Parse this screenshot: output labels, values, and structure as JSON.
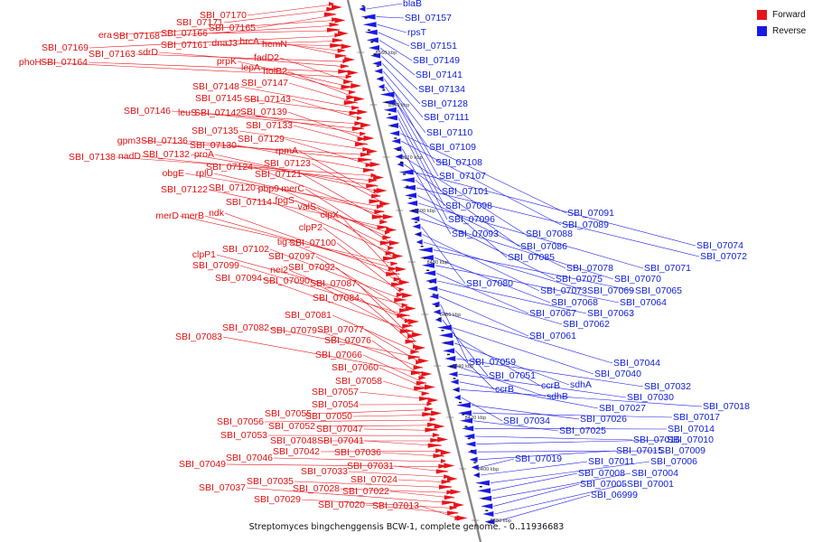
{
  "caption": "Streptomyces bingchenggensis BCW-1, complete genome. - 0..11936683",
  "legend": [
    {
      "label": "Forward",
      "color": "#e8141a"
    },
    {
      "label": "Reverse",
      "color": "#1a1ae8"
    }
  ],
  "colors": {
    "forward": "#e8141a",
    "reverse": "#1a1ae8",
    "axis": "#888888"
  },
  "ticks": [
    "8560 kbp",
    "8540 kbp",
    "8520 kbp",
    "8500 kbp",
    "8480 kbp",
    "8460 kbp",
    "8440 kbp",
    "8420 kbp",
    "8400 kbp",
    "8380 kbp"
  ],
  "forward_genes": [
    "SBI_07170",
    "SBI_07171",
    "SBI_07165",
    "era",
    "SBI_07168",
    "SBI_07166",
    "SBI_07169",
    "SBI_07161",
    "dnaJ3",
    "hrcA",
    "hemN",
    "SBI_07163",
    "sdrD",
    "SBI_07164",
    "phoH",
    "fadD2",
    "prpK",
    "lepA",
    "holB2",
    "SBI_07147",
    "SBI_07148",
    "SBI_07145",
    "SBI_07143",
    "SBI_07146",
    "leuS",
    "SBI_07142",
    "SBI_07139",
    "SBI_07133",
    "SBI_07135",
    "gpm3",
    "SBI_07136",
    "SBI_07129",
    "SBI_07130",
    "SBI_07138",
    "nadD",
    "SBI_07132",
    "proA",
    "rpmA",
    "SBI_07123",
    "obgE",
    "rplU",
    "SBI_07124",
    "SBI_07121",
    "SBI_07122",
    "SBI_07120",
    "pbp9",
    "merC",
    "fpgS",
    "SBI_07114",
    "valS",
    "merD",
    "merB",
    "ndk",
    "clpX",
    "clpP2",
    "tig",
    "SBI_07100",
    "SBI_07102",
    "clpP1",
    "SBI_07097",
    "SBI_07099",
    "nei2",
    "SBI_07092",
    "SBI_07094",
    "SBI_07090",
    "SBI_07087",
    "SBI_07084",
    "SBI_07081",
    "SBI_07082",
    "SBI_07077",
    "SBI_07079",
    "SBI_07083",
    "SBI_07076",
    "SBI_07066",
    "SBI_07060",
    "SBI_07058",
    "SBI_07057",
    "SBI_07054",
    "SBI_07055",
    "SBI_07050",
    "SBI_07056",
    "SBI_07052",
    "SBI_07047",
    "SBI_07053",
    "SBI_07048",
    "SBI_07041",
    "SBI_07042",
    "SBI_07036",
    "SBI_07046",
    "SBI_07049",
    "SBI_07031",
    "SBI_07033",
    "SBI_07024",
    "SBI_07035",
    "SBI_07028",
    "SBI_07022",
    "SBI_07037",
    "SBI_07029",
    "SBI_07020",
    "SBI_07013"
  ],
  "reverse_genes": [
    "blaB",
    "SBI_07157",
    "rpsT",
    "SBI_07151",
    "SBI_07149",
    "SBI_07141",
    "SBI_07134",
    "SBI_07128",
    "SBI_07111",
    "SBI_07110",
    "SBI_07109",
    "SBI_07108",
    "SBI_07107",
    "SBI_07101",
    "SBI_07098",
    "SBI_07096",
    "SBI_07091",
    "SBI_07089",
    "SBI_07093",
    "SBI_07088",
    "SBI_07086",
    "SBI_07074",
    "SBI_07085",
    "SBI_07072",
    "SBI_07078",
    "SBI_07071",
    "SBI_07075",
    "SBI_07070",
    "SBI_07080",
    "SBI_07073",
    "SBI_07069",
    "SBI_07065",
    "SBI_07068",
    "SBI_07064",
    "SBI_07067",
    "SBI_07063",
    "SBI_07062",
    "SBI_07061",
    "SBI_07059",
    "SBI_07044",
    "SBI_07051",
    "SBI_07040",
    "ccrB",
    "sdhA",
    "ccrB",
    "SBI_07032",
    "sdhB",
    "SBI_07030",
    "SBI_07027",
    "SBI_07018",
    "SBI_07034",
    "SBI_07026",
    "SBI_07017",
    "SBI_07025",
    "SBI_07014",
    "SBI_07016",
    "SBI_07010",
    "SBI_07009",
    "SBI_07015",
    "SBI_07019",
    "SBI_07011",
    "SBI_07006",
    "SBI_07008",
    "SBI_07004",
    "SBI_07005",
    "SBI_07001",
    "SBI_06999"
  ]
}
